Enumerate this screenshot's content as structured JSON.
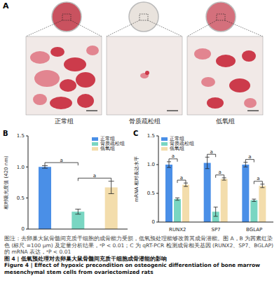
{
  "panel_a": {
    "panel": "A",
    "labels": [
      "正常组",
      "骨质疏松组",
      "低氧组"
    ]
  },
  "chart_data": [
    {
      "panel": "B",
      "type": "bar",
      "categories": [
        "正常组",
        "骨质疏松组",
        "低氧组"
      ],
      "values": [
        1.0,
        0.28,
        0.67
      ],
      "errors": [
        0.02,
        0.04,
        0.1
      ],
      "colors": [
        "#4A8FE7",
        "#79D6C2",
        "#F3DDAC"
      ],
      "ylabel": "相对吸光度值 (420 nm)",
      "ylim": [
        0,
        1.5
      ],
      "yticks": [
        0,
        0.5,
        {
          "value": 1,
          "label": "1.0"
        },
        1.5
      ],
      "tick_labels": "y",
      "legend": "upper right",
      "significance": [
        {
          "between": [
            "正常组",
            "骨质疏松组"
          ],
          "label": "a"
        },
        {
          "between": [
            "骨质疏松组",
            "低氧组"
          ],
          "label": "a"
        }
      ]
    },
    {
      "panel": "C",
      "type": "bar",
      "categories": [
        "RUNX2",
        "SP7",
        "BGLAP"
      ],
      "series": [
        {
          "name": "正常组",
          "color": "#4A8FE7",
          "values": [
            1.0,
            1.03,
            1.0
          ],
          "errors": [
            0.05,
            0.1,
            0.04
          ]
        },
        {
          "name": "骨质疏松组",
          "color": "#79D6C2",
          "values": [
            0.4,
            0.18,
            0.38
          ],
          "errors": [
            0.02,
            0.08,
            0.02
          ]
        },
        {
          "name": "低氧组",
          "color": "#F3DDAC",
          "values": [
            0.65,
            0.75,
            0.63
          ],
          "errors": [
            0.03,
            0.02,
            0.03
          ]
        }
      ],
      "ylabel": "mRNA 相对表达水平",
      "ylim": [
        0,
        1.5
      ],
      "yticks": [
        0,
        0.5,
        {
          "value": 1,
          "label": "1.0"
        },
        1.5
      ],
      "legend": "upper left",
      "significance": [
        {
          "between": [
            "正常组",
            "骨质疏松组"
          ],
          "label": "a"
        },
        {
          "between": [
            "骨质疏松组",
            "低氧组"
          ],
          "label": "a"
        }
      ]
    }
  ],
  "caption": {
    "note": "图注：去卵巢大鼠骨髓间充质干细胞的成骨能力受损，低氧预处理能够改善其成骨潜能。图 A，B 为茜素红染色 (标尺 =100 μm) 及定量分析结果，ᵃP < 0.01；C 为 qRT-PCR 检测成骨相关基因 (RUNX2、SP7、BGLAP) 的 mRNA 表达，ᵃP < 0.01",
    "title": "图 4 | 低氧预处理对去卵巢大鼠骨髓间充质干细胞成骨潜能的影响",
    "title_en": "Figure 4 | Effect of hypoxic precondition on osteogenic differentiation of bone marrow mesenchymal stem cells from ovariectomized rats"
  }
}
